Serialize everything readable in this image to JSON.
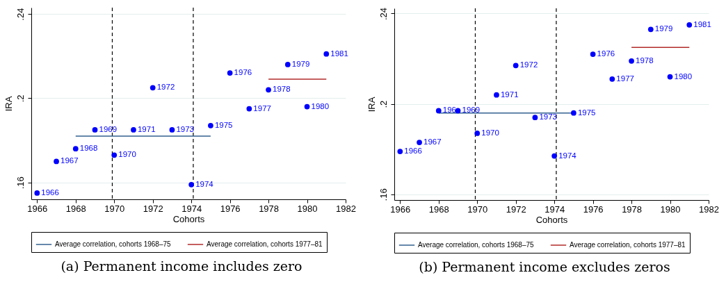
{
  "chart_data": [
    {
      "type": "scatter",
      "xlabel": "Cohorts",
      "ylabel": "IRA",
      "xlim": [
        1965.7,
        1982
      ],
      "xticks": [
        1966,
        1968,
        1970,
        1972,
        1974,
        1976,
        1978,
        1980,
        1982
      ],
      "ylim": [
        0.152,
        0.243
      ],
      "yticks": [
        {
          "value": 0.16,
          "label": ".16"
        },
        {
          "value": 0.2,
          "label": ".2"
        },
        {
          "value": 0.24,
          "label": ".24"
        }
      ],
      "grid": "y",
      "legend": "bottom",
      "annotations": [
        "(a) Permanent income includes zero",
        {
          "text": "1966",
          "x": 1966,
          "y": 0.155
        },
        {
          "text": "1967",
          "x": 1967,
          "y": 0.17
        },
        {
          "text": "1968",
          "x": 1968,
          "y": 0.176
        },
        {
          "text": "1969",
          "x": 1969,
          "y": 0.185
        },
        {
          "text": "1970",
          "x": 1970,
          "y": 0.173
        },
        {
          "text": "1971",
          "x": 1971,
          "y": 0.185
        },
        {
          "text": "1972",
          "x": 1972,
          "y": 0.205
        },
        {
          "text": "1973",
          "x": 1973,
          "y": 0.185
        },
        {
          "text": "1974",
          "x": 1974,
          "y": 0.159
        },
        {
          "text": "1975",
          "x": 1975,
          "y": 0.187
        },
        {
          "text": "1976",
          "x": 1976,
          "y": 0.212
        },
        {
          "text": "1977",
          "x": 1977,
          "y": 0.195
        },
        {
          "text": "1978",
          "x": 1978,
          "y": 0.204
        },
        {
          "text": "1979",
          "x": 1979,
          "y": 0.216
        },
        {
          "text": "1980",
          "x": 1980,
          "y": 0.196
        },
        {
          "text": "1981",
          "x": 1981,
          "y": 0.221
        }
      ],
      "ref_lines": [
        {
          "axis": "x",
          "value": 1969.9,
          "color": "#000000",
          "line_style": "dashed"
        },
        {
          "axis": "x",
          "value": 1974.1,
          "color": "#000000",
          "line_style": "dashed"
        }
      ],
      "series": [
        {
          "type": "scatter",
          "color": "#0000ff",
          "marker": "circle",
          "x": [
            1966,
            1967,
            1968,
            1969,
            1970,
            1971,
            1972,
            1973,
            1974,
            1975,
            1976,
            1977,
            1978,
            1979,
            1980,
            1981
          ],
          "values": [
            0.155,
            0.17,
            0.176,
            0.185,
            0.173,
            0.185,
            0.205,
            0.185,
            0.159,
            0.187,
            0.212,
            0.195,
            0.204,
            0.216,
            0.196,
            0.221
          ]
        },
        {
          "type": "line",
          "name": "Average correlation, cohorts 1968–75",
          "color": "#33618f",
          "x": [
            1968,
            1975
          ],
          "values": [
            0.182,
            0.182
          ]
        },
        {
          "type": "line",
          "name": "Average correlation, cohorts 1977–81",
          "color": "#b22a2a",
          "x": [
            1978,
            1981
          ],
          "values": [
            0.209,
            0.209
          ]
        }
      ]
    },
    {
      "type": "scatter",
      "xlabel": "Cohorts",
      "ylabel": "IRA",
      "xlim": [
        1965.7,
        1982
      ],
      "xticks": [
        1966,
        1968,
        1970,
        1972,
        1974,
        1976,
        1978,
        1980,
        1982
      ],
      "ylim": [
        0.1575,
        0.2423
      ],
      "yticks": [
        {
          "value": 0.16,
          "label": ".16"
        },
        {
          "value": 0.2,
          "label": ".2"
        },
        {
          "value": 0.24,
          "label": ".24"
        }
      ],
      "grid": "y",
      "legend": "bottom",
      "annotations": [
        "(b) Permanent income excludes zeros",
        {
          "text": "1966",
          "x": 1966,
          "y": 0.179
        },
        {
          "text": "1967",
          "x": 1967,
          "y": 0.183
        },
        {
          "text": "196",
          "x": 1968,
          "y": 0.197
        },
        {
          "text": "1969",
          "x": 1969,
          "y": 0.197
        },
        {
          "text": "1970",
          "x": 1970,
          "y": 0.187
        },
        {
          "text": "1971",
          "x": 1971,
          "y": 0.204
        },
        {
          "text": "1972",
          "x": 1972,
          "y": 0.217
        },
        {
          "text": "1973",
          "x": 1973,
          "y": 0.194
        },
        {
          "text": "1974",
          "x": 1974,
          "y": 0.177
        },
        {
          "text": "1975",
          "x": 1975,
          "y": 0.196
        },
        {
          "text": "1976",
          "x": 1976,
          "y": 0.222
        },
        {
          "text": "1977",
          "x": 1977,
          "y": 0.211
        },
        {
          "text": "1978",
          "x": 1978,
          "y": 0.219
        },
        {
          "text": "1979",
          "x": 1979,
          "y": 0.233
        },
        {
          "text": "1980",
          "x": 1980,
          "y": 0.212
        },
        {
          "text": "1981",
          "x": 1981,
          "y": 0.235
        }
      ],
      "ref_lines": [
        {
          "axis": "x",
          "value": 1969.9,
          "color": "#000000",
          "line_style": "dashed"
        },
        {
          "axis": "x",
          "value": 1974.1,
          "color": "#000000",
          "line_style": "dashed"
        }
      ],
      "series": [
        {
          "type": "scatter",
          "color": "#0000ff",
          "marker": "circle",
          "x": [
            1966,
            1967,
            1968,
            1969,
            1970,
            1971,
            1972,
            1973,
            1974,
            1975,
            1976,
            1977,
            1978,
            1979,
            1980,
            1981
          ],
          "values": [
            0.179,
            0.183,
            0.197,
            0.197,
            0.187,
            0.204,
            0.217,
            0.194,
            0.177,
            0.196,
            0.222,
            0.211,
            0.219,
            0.233,
            0.212,
            0.235
          ]
        },
        {
          "type": "line",
          "name": "Average correlation, cohorts 1968–75",
          "color": "#33618f",
          "x": [
            1968,
            1975
          ],
          "values": [
            0.196,
            0.196
          ]
        },
        {
          "type": "line",
          "name": "Average correlation, cohorts 1977–81",
          "color": "#b22a2a",
          "x": [
            1978,
            1981
          ],
          "values": [
            0.225,
            0.225
          ]
        }
      ]
    }
  ]
}
